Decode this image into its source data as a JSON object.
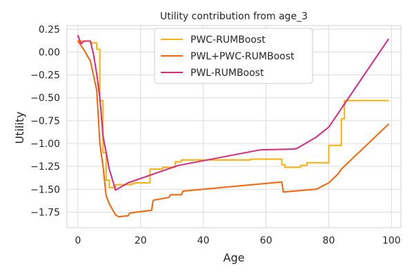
{
  "chart_data": {
    "type": "line",
    "title": "Utility contribution from age_3",
    "xlabel": "Age",
    "ylabel": "Utility",
    "xlim": [
      -3.5,
      103
    ],
    "ylim": [
      -1.92,
      0.29
    ],
    "xticks": [
      0,
      20,
      40,
      60,
      80,
      100
    ],
    "xtick_labels": [
      "0",
      "20",
      "40",
      "60",
      "80",
      "100"
    ],
    "yticks": [
      0.25,
      0.0,
      -0.25,
      -0.5,
      -0.75,
      -1.0,
      -1.25,
      -1.5,
      -1.75
    ],
    "ytick_labels": [
      "0.25",
      "0.00",
      "−0.25",
      "−0.50",
      "−0.75",
      "−1.00",
      "−1.25",
      "−1.50",
      "−1.75"
    ],
    "grid": true,
    "legend_position": "top-center",
    "series": [
      {
        "name": "PWC-RUMBoost",
        "color": "#FFB000",
        "step": true,
        "x": [
          0,
          1,
          4,
          6,
          7,
          8,
          9,
          10,
          12,
          17,
          18,
          23,
          27,
          31,
          33,
          44,
          55,
          65,
          66,
          71,
          73,
          80,
          84,
          85,
          99
        ],
        "y": [
          0.12,
          0.12,
          0.1,
          0.03,
          -0.53,
          -1.1,
          -1.4,
          -1.48,
          -1.45,
          -1.44,
          -1.43,
          -1.28,
          -1.26,
          -1.2,
          -1.18,
          -1.18,
          -1.17,
          -1.23,
          -1.26,
          -1.24,
          -1.21,
          -1.02,
          -0.73,
          -0.53,
          -0.53
        ]
      },
      {
        "name": "PWL+PWC-RUMBoost",
        "color": "#FE6100",
        "step": false,
        "x": [
          0,
          1,
          2,
          3,
          4,
          6,
          7,
          8,
          9,
          10,
          11,
          12,
          13,
          16,
          16.5,
          23.5,
          24,
          29,
          29.5,
          33,
          33.5,
          65,
          65.5,
          76,
          80,
          83,
          84,
          99
        ],
        "y": [
          0.12,
          0.07,
          0.02,
          -0.04,
          -0.1,
          -0.42,
          -1.0,
          -1.25,
          -1.57,
          -1.66,
          -1.72,
          -1.78,
          -1.8,
          -1.79,
          -1.76,
          -1.73,
          -1.62,
          -1.59,
          -1.56,
          -1.56,
          -1.52,
          -1.42,
          -1.53,
          -1.5,
          -1.43,
          -1.33,
          -1.28,
          -0.79
        ]
      },
      {
        "name": "PWL-RUMBoost",
        "color": "#DC267F",
        "step": false,
        "x": [
          0,
          1,
          2,
          4,
          5,
          6,
          7,
          8,
          10,
          12,
          16,
          32,
          58,
          69,
          70,
          76,
          80,
          99
        ],
        "y": [
          0.18,
          0.09,
          0.12,
          0.12,
          -0.03,
          -0.24,
          -0.5,
          -0.92,
          -1.28,
          -1.51,
          -1.43,
          -1.24,
          -1.07,
          -1.06,
          -1.05,
          -0.93,
          -0.82,
          0.14
        ]
      }
    ]
  }
}
